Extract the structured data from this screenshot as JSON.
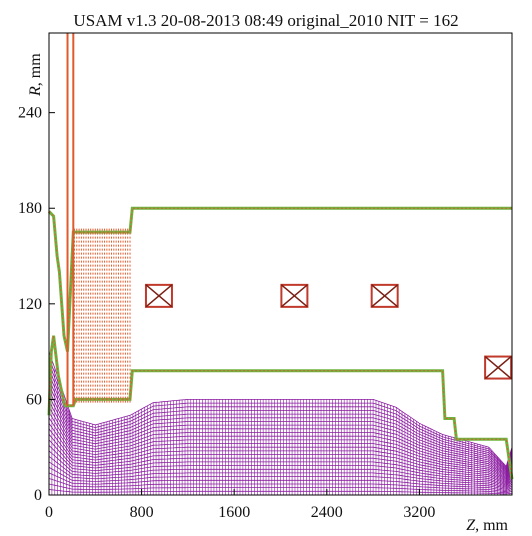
{
  "chart_data": {
    "type": "line",
    "title": "USAM v1.3  20-08-2013 08:49 original_2010  NIT = 162",
    "xlabel_symbol": "Z",
    "xlabel_unit": ", mm",
    "ylabel_symbol": "R",
    "ylabel_unit": ", mm",
    "xlim": [
      0,
      4000
    ],
    "ylim": [
      0,
      290
    ],
    "xticks": [
      0,
      800,
      1600,
      2400,
      3200
    ],
    "yticks": [
      0,
      60,
      120,
      180,
      240
    ],
    "grid": false,
    "colors": {
      "electrode_outline": "#e05a2b",
      "electrode_fill": "#6db33f",
      "beam": "#8a1aa0",
      "coil": "#c0392b",
      "coil_cross": "#7b1f14"
    },
    "series": [
      {
        "role": "electrode-inner",
        "x": [
          0,
          20,
          40,
          80,
          130,
          140,
          160,
          210,
          230,
          700,
          720,
          3400,
          3420,
          3500,
          3520,
          3950,
          4000
        ],
        "y": [
          50,
          90,
          100,
          75,
          58,
          56,
          56,
          56,
          60,
          60,
          78,
          78,
          48,
          48,
          35,
          35,
          10
        ]
      },
      {
        "role": "electrode-outer",
        "x": [
          0,
          40,
          70,
          90,
          130,
          160,
          210,
          230,
          700,
          720,
          4000
        ],
        "y": [
          178,
          175,
          150,
          140,
          100,
          90,
          165,
          165,
          165,
          180,
          180
        ]
      },
      {
        "role": "beam-envelope",
        "x": [
          0,
          200,
          400,
          700,
          900,
          1200,
          1600,
          2400,
          2800,
          3000,
          3200,
          3400,
          3600,
          3800,
          3950,
          4000
        ],
        "y": [
          90,
          48,
          44,
          50,
          58,
          60,
          60,
          60,
          60,
          55,
          45,
          38,
          34,
          30,
          18,
          30
        ]
      }
    ],
    "coils": [
      {
        "z": 950,
        "r": 125
      },
      {
        "z": 2120,
        "r": 125
      },
      {
        "z": 2900,
        "r": 125
      },
      {
        "z": 3880,
        "r": 80
      }
    ]
  }
}
